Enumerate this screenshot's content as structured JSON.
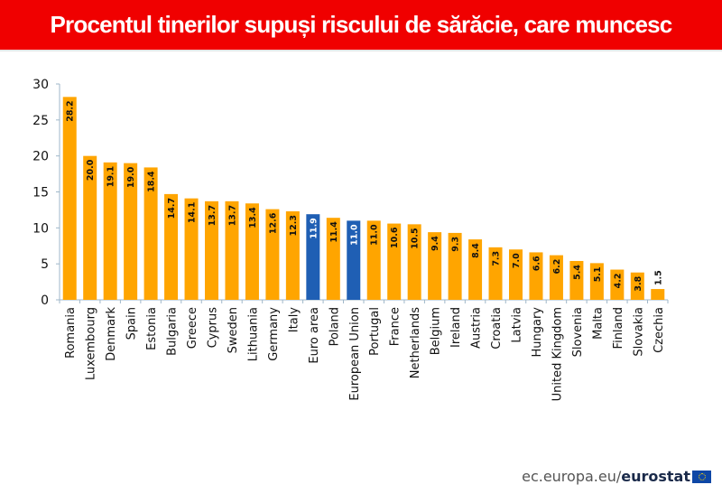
{
  "header": {
    "title": "Procentul tinerilor supuși riscului de sărăcie, care muncesc"
  },
  "footer": {
    "source_prefix": "ec.europa.eu/",
    "source_bold": "eurostat",
    "logo": "eu-flag-icon"
  },
  "colors": {
    "bar": "#ffa500",
    "highlight": "#1f5fb4",
    "banner": "#f00000"
  },
  "chart_data": {
    "type": "bar",
    "title": "Procentul tinerilor supuși riscului de sărăcie, care muncesc",
    "xlabel": "",
    "ylabel": "",
    "ylim": [
      0,
      30
    ],
    "yticks": [
      0,
      5,
      10,
      15,
      20,
      25,
      30
    ],
    "grid": false,
    "categories": [
      "Romania",
      "Luxembourg",
      "Denmark",
      "Spain",
      "Estonia",
      "Bulgaria",
      "Greece",
      "Cyprus",
      "Sweden",
      "Lithuania",
      "Germany",
      "Italy",
      "Euro area",
      "Poland",
      "European Union",
      "Portugal",
      "France",
      "Netherlands",
      "Belgium",
      "Ireland",
      "Austria",
      "Croatia",
      "Latvia",
      "Hungary",
      "United Kingdom",
      "Slovenia",
      "Malta",
      "Finland",
      "Slovakia",
      "Czechia"
    ],
    "values": [
      28.2,
      20.0,
      19.1,
      19.0,
      18.4,
      14.7,
      14.1,
      13.7,
      13.7,
      13.4,
      12.6,
      12.3,
      11.9,
      11.4,
      11.0,
      11.0,
      10.6,
      10.5,
      9.4,
      9.3,
      8.4,
      7.3,
      7.0,
      6.6,
      6.2,
      5.4,
      5.1,
      4.2,
      3.8,
      1.5
    ],
    "labels": [
      "28.2",
      "20.0",
      "19.1",
      "19.0",
      "18.4",
      "14.7",
      "14.1",
      "13.7",
      "13.7",
      "13.4",
      "12.6",
      "12.3",
      "11.9",
      "11.4",
      "11.0",
      "11.0",
      "10.6",
      "10.5",
      "9.4",
      "9.3",
      "8.4",
      "7.3",
      "7.0",
      "6.6",
      "6.2",
      "5.4",
      "5.1",
      "4.2",
      "3.8",
      "1.5"
    ],
    "highlighted": [
      "Euro area",
      "European Union"
    ]
  }
}
